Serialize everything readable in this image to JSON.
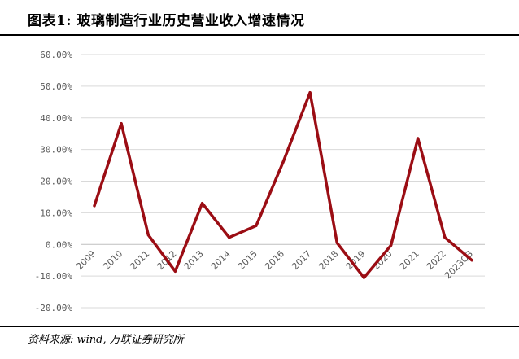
{
  "header": {
    "title": "图表1: 玻璃制造行业历史营业收入增速情况"
  },
  "footer": {
    "source": "资料来源: wind, 万联证券研究所"
  },
  "chart_data": {
    "type": "line",
    "title": "",
    "xlabel": "",
    "ylabel": "",
    "categories": [
      "2009",
      "2010",
      "2011",
      "2012",
      "2013",
      "2014",
      "2015",
      "2016",
      "2017",
      "2018",
      "2019",
      "2020",
      "2021",
      "2022",
      "2023Q3"
    ],
    "series": [
      {
        "values": [
          12.2,
          38.2,
          3.0,
          -8.5,
          13.0,
          2.2,
          5.9,
          26.0,
          48.0,
          0.5,
          -10.5,
          -0.3,
          33.5,
          2.2,
          -5.0
        ],
        "color": "#9b0d14"
      }
    ],
    "ylim": [
      -20,
      60
    ],
    "yticks": [
      "60.00%",
      "50.00%",
      "40.00%",
      "30.00%",
      "20.00%",
      "10.00%",
      "0.00%",
      "-10.00%",
      "-20.00%"
    ],
    "grid": true,
    "legend": "none"
  }
}
